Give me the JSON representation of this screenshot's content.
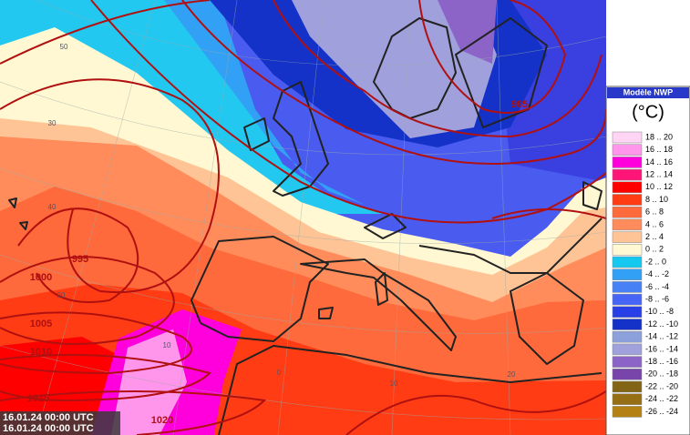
{
  "legend": {
    "title": "Modèle NWP",
    "unit": "(°C)",
    "entries": [
      {
        "label": "18 .. 20",
        "color": "#ffd4f4"
      },
      {
        "label": "16 .. 18",
        "color": "#ff96ec"
      },
      {
        "label": "14 .. 16",
        "color": "#ff00dc"
      },
      {
        "label": "12 .. 14",
        "color": "#ff1478"
      },
      {
        "label": "10 .. 12",
        "color": "#ff0000"
      },
      {
        "label": "8 .. 10",
        "color": "#ff3c14"
      },
      {
        "label": "6 .. 8",
        "color": "#ff6a3c"
      },
      {
        "label": "4 .. 6",
        "color": "#ff8c5a"
      },
      {
        "label": "2 .. 4",
        "color": "#ffc496"
      },
      {
        "label": "0 .. 2",
        "color": "#fff8d2"
      },
      {
        "label": "-2 .. 0",
        "color": "#14c8f0"
      },
      {
        "label": "-4 .. -2",
        "color": "#32a0f5"
      },
      {
        "label": "-6 .. -4",
        "color": "#4682f5"
      },
      {
        "label": "-8 .. -6",
        "color": "#4664f5"
      },
      {
        "label": "-10 .. -8",
        "color": "#2840e6"
      },
      {
        "label": "-12 .. -10",
        "color": "#1432c8"
      },
      {
        "label": "-14 .. -12",
        "color": "#8ca0dc"
      },
      {
        "label": "-16 .. -14",
        "color": "#a0a0dc"
      },
      {
        "label": "-18 .. -16",
        "color": "#8c64c8"
      },
      {
        "label": "-20 .. -18",
        "color": "#7846aa"
      },
      {
        "label": "-22 .. -20",
        "color": "#826414"
      },
      {
        "label": "-24 .. -22",
        "color": "#966e14"
      },
      {
        "label": "-26 .. -24",
        "color": "#b48214"
      }
    ]
  },
  "timestamps": [
    "16.01.24 00:00 UTC",
    "16.01.24 00:00 UTC"
  ],
  "isobar_labels": [
    "985",
    "995",
    "1000",
    "1005",
    "1010",
    "1015",
    "1020"
  ],
  "graticule_labels": [
    "50",
    "30",
    "40",
    "20",
    "10",
    "0",
    "10",
    "20"
  ]
}
